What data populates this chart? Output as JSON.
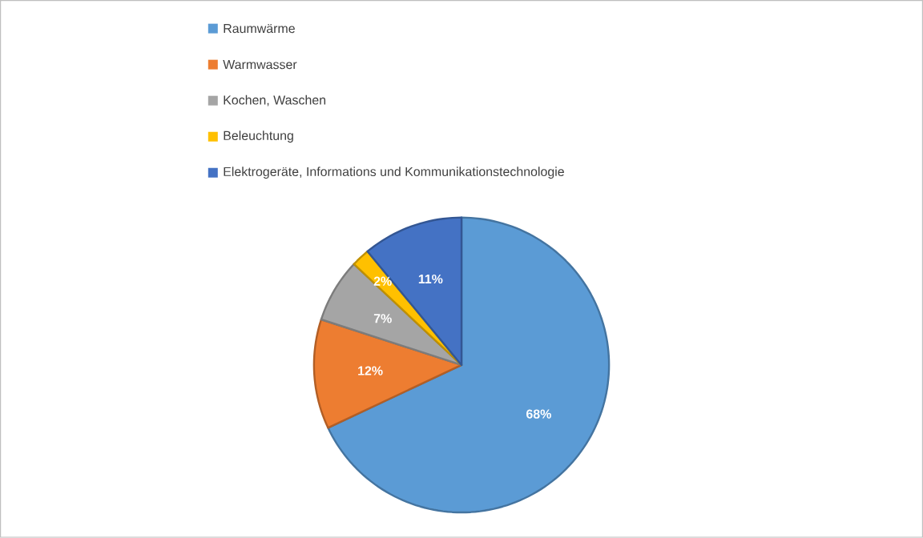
{
  "chart_data": {
    "type": "pie",
    "categories": [
      "Raumwärme",
      "Warmwasser",
      "Kochen, Waschen",
      "Beleuchtung",
      "Elektrogeräte, Informations und Kommunikationstechnologie"
    ],
    "values": [
      68,
      12,
      7,
      2,
      11
    ],
    "value_labels": [
      "68%",
      "12%",
      "7%",
      "2%",
      "11%"
    ],
    "colors": [
      "#5b9bd5",
      "#ed7d31",
      "#a5a5a5",
      "#ffc000",
      "#4472c4"
    ],
    "legend": "top"
  }
}
